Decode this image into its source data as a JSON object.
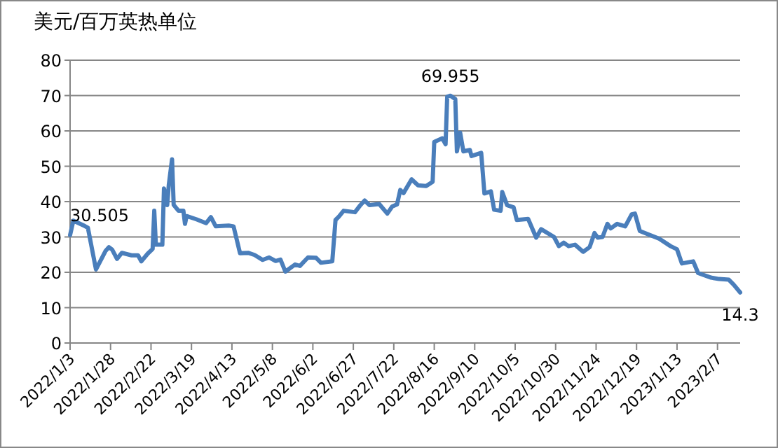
{
  "chart_data": {
    "type": "line",
    "title": "美元/百万英热单位",
    "x": [
      "2022-01-03",
      "2022-01-05",
      "2022-01-12",
      "2022-01-14",
      "2022-01-19",
      "2022-01-25",
      "2022-01-27",
      "2022-01-29",
      "2022-02-01",
      "2022-02-04",
      "2022-02-10",
      "2022-02-14",
      "2022-02-16",
      "2022-02-20",
      "2022-02-23",
      "2022-02-24",
      "2022-02-25",
      "2022-03-01",
      "2022-03-02",
      "2022-03-04",
      "2022-03-05",
      "2022-03-07",
      "2022-03-08",
      "2022-03-11",
      "2022-03-14",
      "2022-03-15",
      "2022-03-16",
      "2022-03-22",
      "2022-03-28",
      "2022-03-31",
      "2022-04-03",
      "2022-04-11",
      "2022-04-14",
      "2022-04-18",
      "2022-04-23",
      "2022-04-27",
      "2022-05-02",
      "2022-05-06",
      "2022-05-10",
      "2022-05-13",
      "2022-05-16",
      "2022-05-22",
      "2022-05-25",
      "2022-05-30",
      "2022-06-04",
      "2022-06-07",
      "2022-06-14",
      "2022-06-16",
      "2022-06-18",
      "2022-06-21",
      "2022-06-28",
      "2022-07-01",
      "2022-07-04",
      "2022-07-07",
      "2022-07-13",
      "2022-07-18",
      "2022-07-21",
      "2022-07-24",
      "2022-07-26",
      "2022-07-28",
      "2022-08-02",
      "2022-08-06",
      "2022-08-11",
      "2022-08-15",
      "2022-08-16",
      "2022-08-21",
      "2022-08-23",
      "2022-08-24",
      "2022-08-26",
      "2022-08-29",
      "2022-08-30",
      "2022-09-01",
      "2022-09-03",
      "2022-09-07",
      "2022-09-08",
      "2022-09-14",
      "2022-09-16",
      "2022-09-20",
      "2022-09-22",
      "2022-09-26",
      "2022-09-27",
      "2022-09-30",
      "2022-10-04",
      "2022-10-06",
      "2022-10-13",
      "2022-10-18",
      "2022-10-21",
      "2022-10-29",
      "2022-11-01",
      "2022-11-04",
      "2022-11-07",
      "2022-11-11",
      "2022-11-16",
      "2022-11-20",
      "2022-11-23",
      "2022-11-25",
      "2022-11-28",
      "2022-12-01",
      "2022-12-03",
      "2022-12-07",
      "2022-12-12",
      "2022-12-16",
      "2022-12-18",
      "2022-12-21",
      "2023-01-02",
      "2023-01-09",
      "2023-01-13",
      "2023-01-16",
      "2023-01-23",
      "2023-01-26",
      "2023-02-03",
      "2023-02-08",
      "2023-02-14",
      "2023-02-17",
      "2023-02-21"
    ],
    "series": [
      {
        "color": "#4a7ebb",
        "values": [
          30.505,
          34.6,
          33.1,
          32.6,
          20.8,
          26.1,
          27.1,
          26.4,
          23.8,
          25.5,
          24.8,
          24.8,
          23.1,
          25.3,
          26.6,
          37.4,
          27.8,
          27.8,
          43.7,
          39.0,
          44.8,
          52.0,
          39.1,
          37.4,
          37.4,
          33.7,
          35.9,
          35.0,
          33.9,
          35.6,
          33.0,
          33.2,
          33.0,
          25.4,
          25.5,
          24.9,
          23.5,
          24.2,
          23.2,
          23.6,
          20.2,
          22.2,
          21.8,
          24.2,
          24.1,
          22.7,
          23.1,
          34.8,
          35.7,
          37.4,
          37.0,
          38.8,
          40.3,
          39.0,
          39.3,
          36.6,
          38.6,
          39.2,
          43.3,
          42.4,
          46.3,
          44.6,
          44.4,
          45.6,
          56.9,
          57.9,
          56.2,
          69.7,
          69.955,
          69.0,
          54.2,
          59.5,
          54.2,
          54.6,
          52.9,
          53.8,
          42.3,
          42.9,
          37.7,
          37.4,
          42.7,
          39.0,
          38.4,
          34.8,
          35.1,
          29.8,
          32.2,
          30.0,
          27.4,
          28.4,
          27.4,
          27.8,
          25.8,
          27.1,
          31.1,
          29.8,
          30.0,
          33.7,
          32.4,
          33.7,
          33.0,
          36.4,
          36.6,
          31.7,
          29.5,
          27.4,
          26.5,
          22.5,
          23.1,
          19.8,
          18.5,
          18.1,
          17.9,
          16.5,
          14.3
        ]
      }
    ],
    "xlim": [
      "2022-01-03",
      "2023-02-21"
    ],
    "xticks": [
      {
        "value": "2022-01-03",
        "label": "2022/1/3"
      },
      {
        "value": "2022-01-28",
        "label": "2022/1/28"
      },
      {
        "value": "2022-02-22",
        "label": "2022/2/22"
      },
      {
        "value": "2022-03-19",
        "label": "2022/3/19"
      },
      {
        "value": "2022-04-13",
        "label": "2022/4/13"
      },
      {
        "value": "2022-05-08",
        "label": "2022/5/8"
      },
      {
        "value": "2022-06-02",
        "label": "2022/6/2"
      },
      {
        "value": "2022-06-27",
        "label": "2022/6/27"
      },
      {
        "value": "2022-07-22",
        "label": "2022/7/22"
      },
      {
        "value": "2022-08-16",
        "label": "2022/8/16"
      },
      {
        "value": "2022-09-10",
        "label": "2022/9/10"
      },
      {
        "value": "2022-10-05",
        "label": "2022/10/5"
      },
      {
        "value": "2022-10-30",
        "label": "2022/10/30"
      },
      {
        "value": "2022-11-24",
        "label": "2022/11/24"
      },
      {
        "value": "2022-12-19",
        "label": "2022/12/19"
      },
      {
        "value": "2023-01-13",
        "label": "2023/1/13"
      },
      {
        "value": "2023-02-07",
        "label": "2023/2/7"
      }
    ],
    "ylim": [
      0,
      80
    ],
    "yticks": [
      0,
      10,
      20,
      30,
      40,
      50,
      60,
      70,
      80
    ],
    "grid": "y",
    "annotations": [
      {
        "text": "30.505",
        "x": "2022-01-03",
        "y": 30.505
      },
      {
        "text": "69.955",
        "x": "2022-08-26",
        "y": 69.955
      },
      {
        "text": "14.3",
        "x": "2023-02-21",
        "y": 14.3
      }
    ]
  }
}
